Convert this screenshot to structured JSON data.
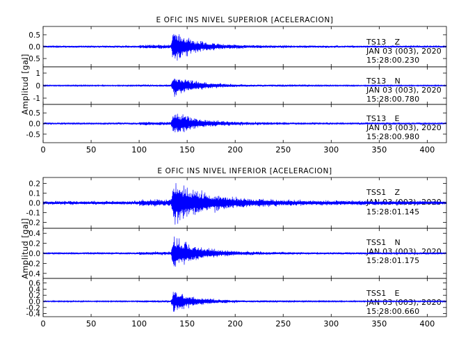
{
  "chart_data": [
    {
      "type": "line",
      "title": "E OFIC INS NIVEL SUPERIOR [ACELERACION]",
      "ylabel": "Amplitud [gal]",
      "xlabel": "",
      "xlim": [
        0,
        420
      ],
      "x_ticks": [
        0,
        50,
        100,
        150,
        200,
        250,
        300,
        350,
        400
      ],
      "series_color": "#0000ff",
      "panels": [
        {
          "name": "TS13 Z",
          "station": "TS13",
          "component": "Z",
          "date": "JAN 03 (003), 2020",
          "time": "15:28:00.230",
          "ylim": [
            -0.85,
            0.85
          ],
          "y_ticks": [
            -0.5,
            0.0,
            0.5
          ],
          "y_tick_labels": [
            "-0.5",
            "0.0",
            "0.5"
          ],
          "noise_amplitude": 0.05,
          "first_onset_s": 100,
          "arrival_s": 133,
          "peak_amplitude": 0.78,
          "decay_s": 20,
          "coda_s": 180
        },
        {
          "name": "TS13 N",
          "station": "TS13",
          "component": "N",
          "date": "JAN 03 (003), 2020",
          "time": "15:28:00.780",
          "ylim": [
            -1.5,
            1.5
          ],
          "y_ticks": [
            -1,
            0,
            1
          ],
          "y_tick_labels": [
            "-1",
            "0",
            "1"
          ],
          "noise_amplitude": 0.05,
          "first_onset_s": 100,
          "arrival_s": 133,
          "peak_amplitude": 0.95,
          "decay_s": 24,
          "coda_s": 190
        },
        {
          "name": "TS13 E",
          "station": "TS13",
          "component": "E",
          "date": "JAN 03 (003), 2020",
          "time": "15:28:00.980",
          "ylim": [
            -0.9,
            0.9
          ],
          "y_ticks": [
            -0.5,
            0.0,
            0.5
          ],
          "y_tick_labels": [
            "-0.5",
            "0.0",
            "0.5"
          ],
          "noise_amplitude": 0.05,
          "first_onset_s": 100,
          "arrival_s": 133,
          "peak_amplitude": 0.62,
          "decay_s": 22,
          "coda_s": 190
        }
      ]
    },
    {
      "type": "line",
      "title": "E OFIC INS NIVEL INFERIOR [ACELERACION]",
      "ylabel": "Amplitud [gal]",
      "xlabel": "",
      "xlim": [
        0,
        420
      ],
      "x_ticks": [
        0,
        50,
        100,
        150,
        200,
        250,
        300,
        350,
        400
      ],
      "series_color": "#0000ff",
      "panels": [
        {
          "name": "TSS1 Z",
          "station": "TSS1",
          "component": "Z",
          "date": "JAN 03 (003), 2020",
          "time": "15:28:01.145",
          "ylim": [
            -0.26,
            0.26
          ],
          "y_ticks": [
            -0.2,
            -0.1,
            0.0,
            0.1,
            0.2
          ],
          "y_tick_labels": [
            "-0.2",
            "-0.1",
            "0.0",
            "0.1",
            "0.2"
          ],
          "noise_amplitude": 0.02,
          "first_onset_s": 100,
          "arrival_s": 133,
          "peak_amplitude": 0.22,
          "decay_s": 35,
          "coda_s": 280
        },
        {
          "name": "TSS1 N",
          "station": "TSS1",
          "component": "N",
          "date": "JAN 03 (003), 2020",
          "time": "15:28:01.175",
          "ylim": [
            -0.5,
            0.5
          ],
          "y_ticks": [
            -0.4,
            -0.2,
            0.0,
            0.2,
            0.4
          ],
          "y_tick_labels": [
            "-0.4",
            "-0.2",
            "0.0",
            "0.2",
            "0.4"
          ],
          "noise_amplitude": 0.02,
          "first_onset_s": 100,
          "arrival_s": 133,
          "peak_amplitude": 0.38,
          "decay_s": 24,
          "coda_s": 220
        },
        {
          "name": "TSS1 E",
          "station": "TSS1",
          "component": "E",
          "date": "JAN 03 (003), 2020",
          "time": "15:28:00.660",
          "ylim": [
            -0.5,
            0.75
          ],
          "y_ticks": [
            -0.4,
            -0.2,
            0.0,
            0.2,
            0.4,
            0.6
          ],
          "y_tick_labels": [
            "-0.4",
            "-0.2",
            "0.0",
            "0.2",
            "0.4",
            "0.6"
          ],
          "noise_amplitude": 0.02,
          "first_onset_s": 100,
          "arrival_s": 133,
          "peak_amplitude": 0.42,
          "decay_s": 22,
          "coda_s": 200
        }
      ]
    }
  ]
}
